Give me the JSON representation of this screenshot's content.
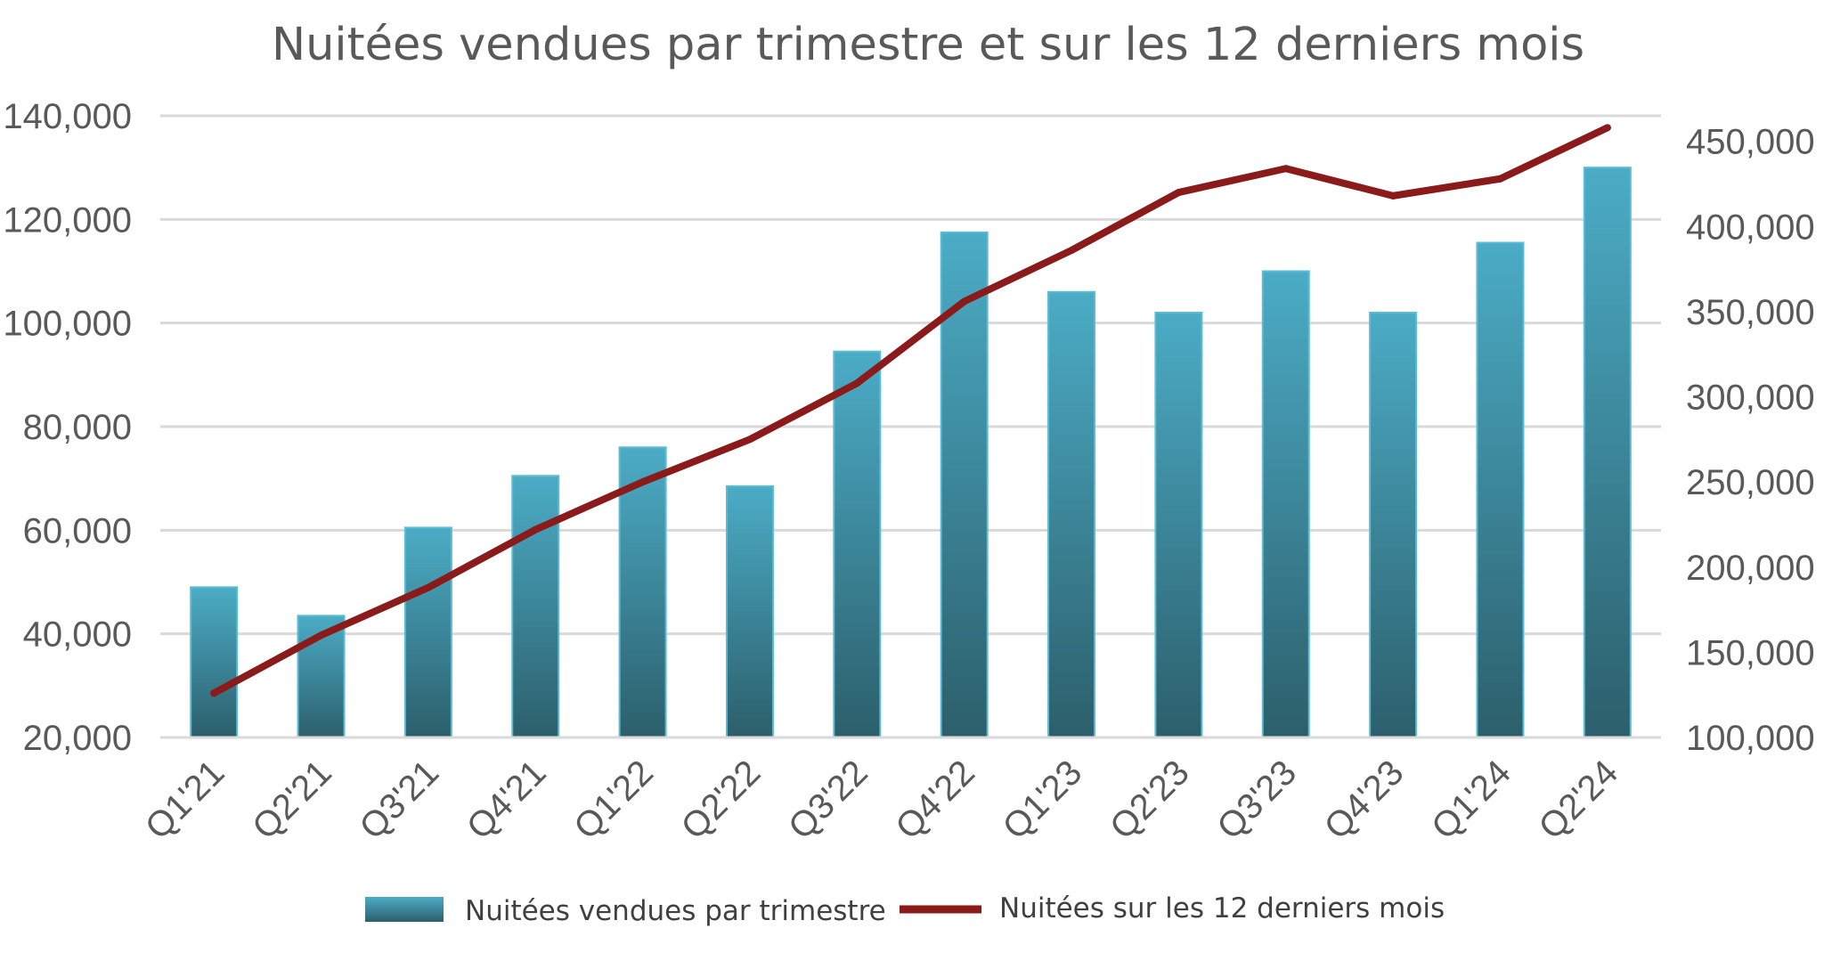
{
  "chart_data": {
    "type": "bar",
    "title": "Nuitées vendues par trimestre et sur les 12 derniers mois",
    "categories": [
      "Q1'21",
      "Q2'21",
      "Q3'21",
      "Q4'21",
      "Q1'22",
      "Q2'22",
      "Q3'22",
      "Q4'22",
      "Q1'23",
      "Q2'23",
      "Q3'23",
      "Q4'23",
      "Q1'24",
      "Q2'24"
    ],
    "series": [
      {
        "name": "Nuitées vendues par trimestre",
        "type": "bar",
        "axis": "left",
        "color_top": "#4BACC6",
        "color_bottom": "#2C5F6B",
        "values": [
          49000,
          43500,
          60500,
          70500,
          76000,
          68500,
          94500,
          117500,
          106000,
          102000,
          110000,
          102000,
          115500,
          130000
        ]
      },
      {
        "name": "Nuitées sur les 12 derniers mois",
        "type": "line",
        "axis": "right",
        "color": "#8B1A1A",
        "values": [
          126000,
          160000,
          188000,
          222000,
          250000,
          275000,
          308000,
          356000,
          386000,
          420000,
          434000,
          418000,
          428000,
          458000
        ]
      }
    ],
    "y_left": {
      "min": 20000,
      "max": 140000,
      "ticks": [
        20000,
        40000,
        60000,
        80000,
        100000,
        120000,
        140000
      ],
      "tick_labels": [
        "20,000",
        "40,000",
        "60,000",
        "80,000",
        "100,000",
        "120,000",
        "140,000"
      ]
    },
    "y_right": {
      "min": 100000,
      "max": 465000,
      "ticks": [
        100000,
        150000,
        200000,
        250000,
        300000,
        350000,
        400000,
        450000
      ],
      "tick_labels": [
        "100,000",
        "150,000",
        "200,000",
        "250,000",
        "300,000",
        "350,000",
        "400,000",
        "450,000"
      ]
    },
    "grid": true,
    "legend_position": "bottom"
  }
}
